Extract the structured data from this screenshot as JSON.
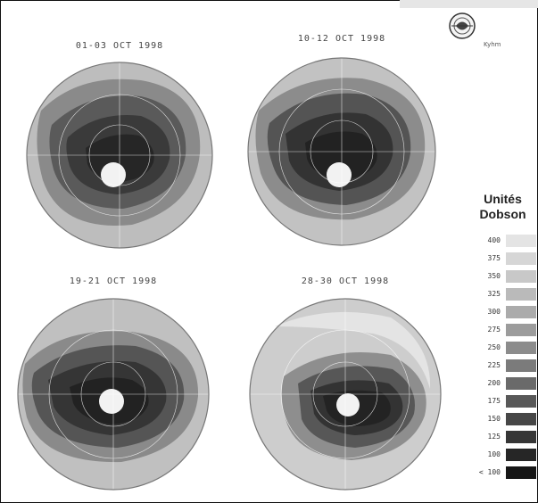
{
  "panels": [
    {
      "title": "01-03 OCT 1998"
    },
    {
      "title": "10-12 OCT 1998"
    },
    {
      "title": "19-21 OCT 1998"
    },
    {
      "title": "28-30 OCT 1998"
    }
  ],
  "logo": {
    "label": "Kyhm",
    "icon": "organization-emblem-icon"
  },
  "legend": {
    "title_line1": "Unités",
    "title_line2": "Dobson",
    "items": [
      {
        "label": "400",
        "color": "#e4e4e4"
      },
      {
        "label": "375",
        "color": "#d6d6d6"
      },
      {
        "label": "350",
        "color": "#c8c8c8"
      },
      {
        "label": "325",
        "color": "#bababa"
      },
      {
        "label": "300",
        "color": "#ababab"
      },
      {
        "label": "275",
        "color": "#9c9c9c"
      },
      {
        "label": "250",
        "color": "#8c8c8c"
      },
      {
        "label": "225",
        "color": "#7b7b7b"
      },
      {
        "label": "200",
        "color": "#6a6a6a"
      },
      {
        "label": "175",
        "color": "#585858"
      },
      {
        "label": "150",
        "color": "#474747"
      },
      {
        "label": "125",
        "color": "#363636"
      },
      {
        "label": "100",
        "color": "#262626"
      },
      {
        "label": "< 100",
        "color": "#161616"
      }
    ]
  }
}
